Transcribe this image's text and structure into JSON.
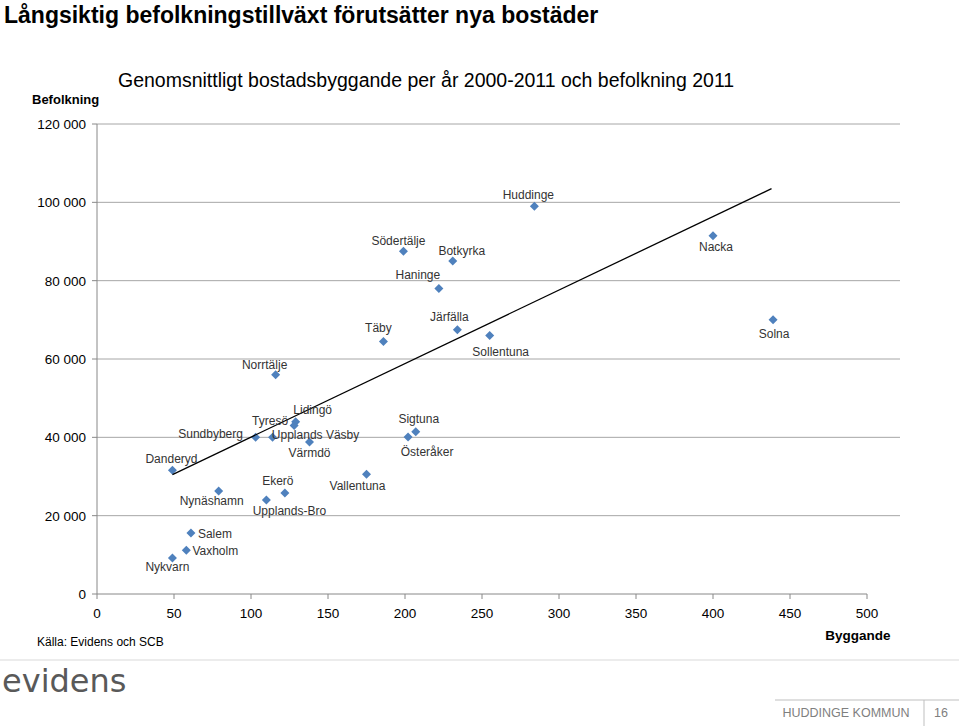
{
  "chart_data": {
    "type": "scatter",
    "title": "Långsiktig befolkningstillväxt förutsätter nya bostäder",
    "subtitle": "Genomsnittligt bostadsbyggande per år 2000-2011 och befolkning 2011",
    "y_label": "Befolkning",
    "x_label": "Byggande",
    "xlim": [
      0,
      500
    ],
    "ylim": [
      0,
      120000
    ],
    "xticks": [
      0,
      50,
      100,
      150,
      200,
      250,
      300,
      350,
      400,
      450,
      500
    ],
    "yticks": [
      0,
      {
        "value": 20000,
        "label": "20 000"
      },
      {
        "value": 40000,
        "label": "40 000"
      },
      {
        "value": 60000,
        "label": "60 000"
      },
      {
        "value": 80000,
        "label": "80 000"
      },
      {
        "value": 100000,
        "label": "100 000"
      },
      {
        "value": 120000,
        "label": "120 000"
      }
    ],
    "grid": true,
    "series": [
      {
        "type": "scatter",
        "color": "#4f81bd",
        "marker": "diamond",
        "labels": [
          "Huddinge",
          "Södertälje",
          "Botkyrka",
          "Nacka",
          "Haninge",
          "Täby",
          "Järfälla",
          "Sollentuna",
          "Solna",
          "Norrtälje",
          "Lidingö",
          "Tyresö",
          "Sundbyberg",
          "Upplands Väsby",
          "Värmdö",
          "Sigtuna",
          "Österåker",
          "Danderyd",
          "Vallentuna",
          "Ekerö",
          "Nynäshamn",
          "Upplands-Bro",
          "Salem",
          "Vaxholm",
          "Nykvarn"
        ],
        "x": [
          284,
          199,
          231,
          400,
          222,
          186,
          234,
          255,
          439,
          116,
          129,
          128,
          103,
          114,
          138,
          207,
          202,
          49,
          175,
          122,
          79,
          110,
          61,
          58,
          49
        ],
        "values": [
          99000,
          87500,
          85000,
          91500,
          78000,
          64500,
          67500,
          66000,
          70000,
          56000,
          44000,
          43000,
          40000,
          40000,
          38800,
          41400,
          40100,
          31600,
          30600,
          25800,
          26300,
          24000,
          15600,
          11200,
          9200
        ]
      },
      {
        "type": "line",
        "color": "#000000",
        "line_style": "solid",
        "x": [
          49,
          438
        ],
        "values": [
          30500,
          103500
        ]
      }
    ]
  },
  "page": {
    "source": "Källa: Evidens och SCB",
    "logo": "evidens",
    "footer": "HUDDINGE KOMMUN",
    "page_number": 16
  }
}
